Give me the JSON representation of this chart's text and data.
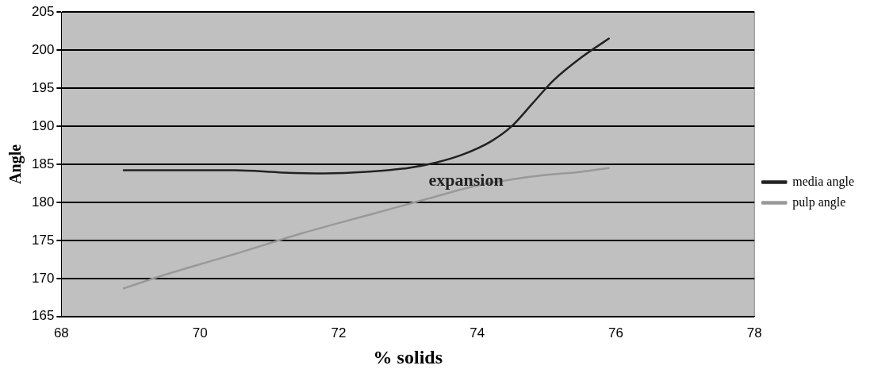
{
  "chart_data": {
    "type": "line",
    "xlabel": "% solids",
    "ylabel": "Angle",
    "xlim": [
      68,
      78
    ],
    "xticks": [
      68,
      70,
      72,
      74,
      76,
      78
    ],
    "ylim": [
      165,
      205
    ],
    "yticks": [
      165,
      170,
      175,
      180,
      185,
      190,
      195,
      200,
      205
    ],
    "grid": "y",
    "legend": "right",
    "marker": "none",
    "line_style": "solid",
    "annotations": [
      "expansion"
    ],
    "series": [
      {
        "name": "media angle",
        "color": "#222222",
        "x": [
          68.9,
          69.5,
          70.5,
          71.2,
          71.8,
          72.4,
          73,
          73.4,
          73.8,
          74.2,
          74.5,
          74.8,
          75.1,
          75.5,
          75.9
        ],
        "values": [
          184.2,
          184.2,
          184.2,
          183.9,
          183.8,
          184.0,
          184.5,
          185.2,
          186.3,
          188.0,
          190.0,
          193.0,
          196.0,
          199.0,
          201.5
        ]
      },
      {
        "name": "pulp angle",
        "color": "#999999",
        "x": [
          68.9,
          69.5,
          70.5,
          71.5,
          72.5,
          73.3,
          74,
          74.5,
          75,
          75.5,
          75.9
        ],
        "values": [
          168.7,
          170.5,
          173.2,
          176.0,
          178.5,
          180.5,
          182.2,
          183.0,
          183.6,
          184.0,
          184.5
        ]
      }
    ]
  }
}
